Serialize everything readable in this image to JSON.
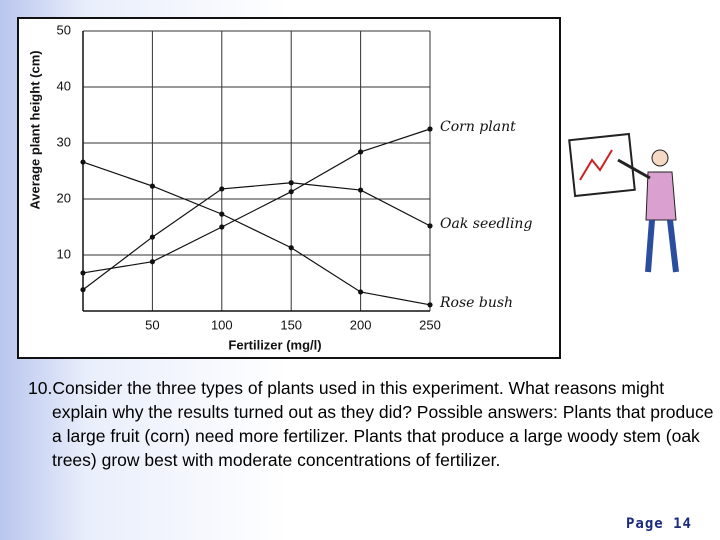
{
  "chart_data": {
    "type": "line",
    "x_label": "Fertilizer (mg/l)",
    "y_label": "Average plant height (cm)",
    "x": [
      0,
      50,
      100,
      150,
      200,
      250
    ],
    "series": [
      {
        "name": "Corn plant",
        "color": "#111111",
        "values": [
          6.8,
          8.8,
          15,
          21.3,
          28.4,
          32.5
        ]
      },
      {
        "name": "Oak seedling",
        "color": "#111111",
        "values": [
          3.8,
          13.2,
          21.8,
          22.9,
          21.6,
          15.2
        ]
      },
      {
        "name": "Rose bush",
        "color": "#111111",
        "values": [
          26.6,
          22.3,
          17.3,
          11.3,
          3.4,
          1.1
        ]
      }
    ],
    "xlim": [
      0,
      250
    ],
    "ylim": [
      0,
      50
    ],
    "xticks": [
      50,
      100,
      150,
      200,
      250
    ],
    "yticks": [
      10,
      20,
      30,
      40,
      50
    ],
    "grid": true
  },
  "question": "10.Consider the three types of plants used in this experiment.  What reasons might explain why the results turned out as they did?  Possible answers: Plants that produce a large fruit (corn) need more fertilizer.  Plants that produce a large woody stem (oak trees) grow best with moderate concentrations of fertilizer.",
  "page_label": "Page 14"
}
